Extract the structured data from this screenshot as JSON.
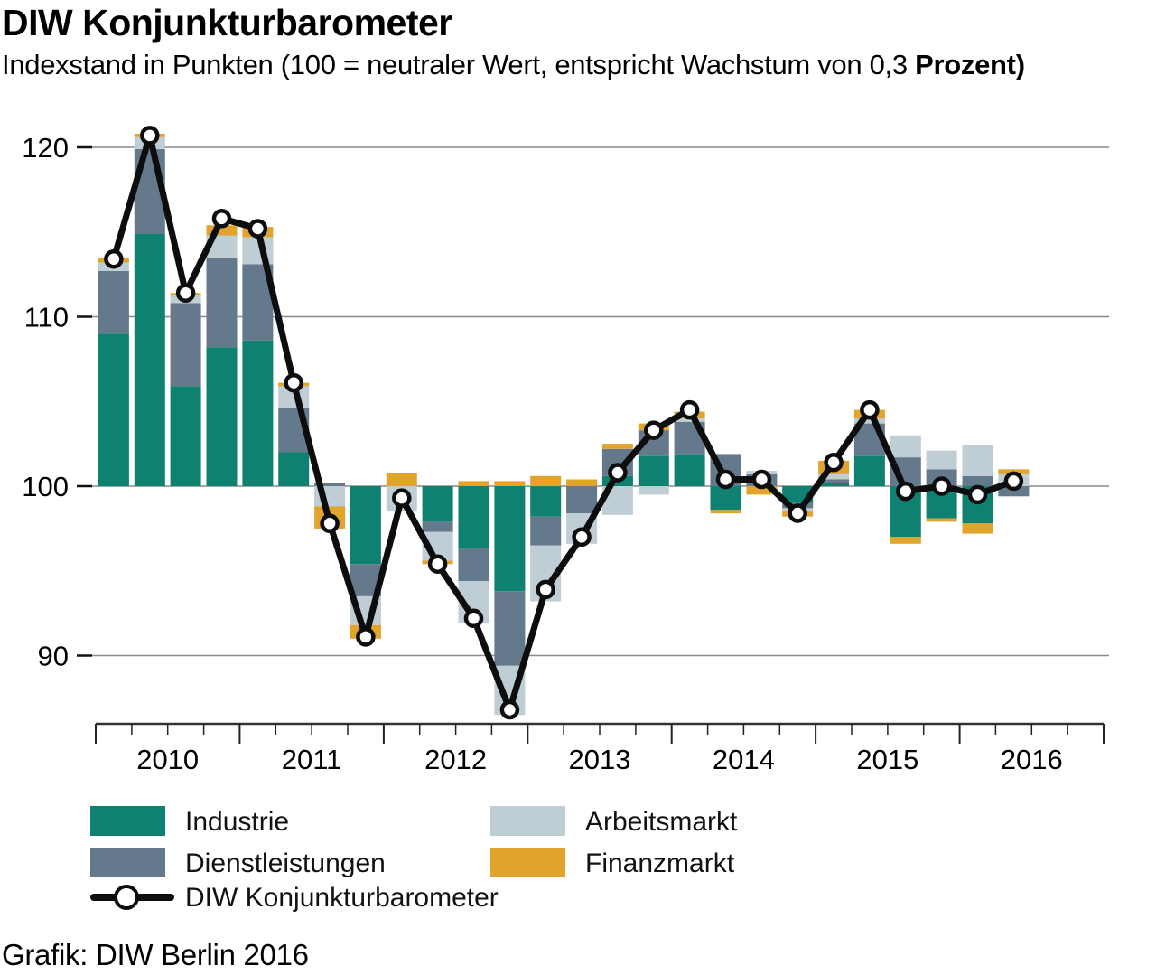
{
  "header": {
    "title": "DIW Konjunkturbarometer",
    "subtitle_regular": "Indexstand in Punkten (100 = neutraler Wert, entspricht Wachstum von 0,3 ",
    "subtitle_bold": "Prozent)"
  },
  "footer": {
    "source": "Grafik: DIW Berlin 2016"
  },
  "legend": {
    "items": [
      {
        "label": "Industrie",
        "color": "#0E8170",
        "type": "swatch"
      },
      {
        "label": "Dienstleistungen",
        "color": "#64798C",
        "type": "swatch"
      },
      {
        "label": "Arbeitsmarkt",
        "color": "#BFCDD5",
        "type": "swatch"
      },
      {
        "label": "Finanzmarkt",
        "color": "#E1A42D",
        "type": "swatch"
      },
      {
        "label": "DIW Konjunkturbarometer",
        "color": "#0D0D0D",
        "type": "line-marker"
      }
    ]
  },
  "chart_data": {
    "type": "bar",
    "subtype": "stacked-bars-with-line",
    "title": "DIW Konjunkturbarometer",
    "xlabel": "",
    "ylabel": "Indexstand in Punkten",
    "baseline": 100,
    "yticks": [
      120,
      110,
      100,
      90
    ],
    "ylim": [
      86,
      124
    ],
    "grid": "horizontal",
    "legend_position": "bottom-left",
    "x_years": [
      "2010",
      "2011",
      "2012",
      "2013",
      "2014",
      "2015",
      "2016"
    ],
    "categories": [
      "2010 Q1",
      "2010 Q2",
      "2010 Q3",
      "2010 Q4",
      "2011 Q1",
      "2011 Q2",
      "2011 Q3",
      "2011 Q4",
      "2012 Q1",
      "2012 Q2",
      "2012 Q3",
      "2012 Q4",
      "2013 Q1",
      "2013 Q2",
      "2013 Q3",
      "2013 Q4",
      "2014 Q1",
      "2014 Q2",
      "2014 Q3",
      "2014 Q4",
      "2015 Q1",
      "2015 Q2",
      "2015 Q3",
      "2015 Q4",
      "2016 Q1",
      "2016 Q2"
    ],
    "series_note": "values are contributions in index points relative to the neutral value 100; positives stack above 100, negatives below",
    "series": [
      {
        "name": "Industrie",
        "color": "#0E8170",
        "values": [
          9.0,
          14.9,
          5.9,
          8.2,
          8.6,
          2.0,
          0,
          -4.6,
          0,
          -2.1,
          -3.7,
          -6.2,
          -1.8,
          0,
          0.6,
          1.8,
          1.9,
          -1.4,
          0,
          -1.0,
          0.2,
          1.8,
          -3.0,
          -1.9,
          -2.2,
          0
        ]
      },
      {
        "name": "Dienstleistungen",
        "color": "#64798C",
        "values": [
          3.7,
          5.0,
          4.9,
          5.3,
          4.5,
          2.6,
          0.2,
          -1.9,
          0,
          -0.6,
          -1.9,
          -4.4,
          -1.7,
          -1.6,
          1.6,
          1.5,
          1.9,
          1.9,
          0.7,
          -0.3,
          0.2,
          1.9,
          1.7,
          1.0,
          0.6,
          -0.6
        ]
      },
      {
        "name": "Arbeitsmarkt",
        "color": "#BFCDD5",
        "values": [
          0.5,
          0.7,
          0.5,
          1.3,
          1.6,
          1.3,
          -1.2,
          -1.7,
          -1.5,
          -1.7,
          -2.5,
          -2.9,
          -3.3,
          -1.8,
          -1.7,
          -0.5,
          0.2,
          0,
          0.2,
          -0.2,
          0.3,
          0.3,
          1.3,
          1.1,
          1.8,
          0.7
        ]
      },
      {
        "name": "Finanzmarkt",
        "color": "#E1A42D",
        "values": [
          0.3,
          0.2,
          0.1,
          0.6,
          0.6,
          0.2,
          -1.3,
          -0.8,
          0.8,
          -0.2,
          0.3,
          0.3,
          0.6,
          0.4,
          0.3,
          0.4,
          0.4,
          -0.2,
          -0.5,
          -0.3,
          0.8,
          0.5,
          -0.4,
          -0.2,
          -0.6,
          0.3
        ]
      }
    ],
    "line": {
      "name": "DIW Konjunkturbarometer",
      "color": "#0D0D0D",
      "marker": "open-circle",
      "values": [
        113.4,
        120.7,
        111.4,
        115.8,
        115.2,
        106.1,
        97.8,
        91.1,
        99.3,
        95.4,
        92.2,
        86.8,
        93.9,
        97.0,
        100.8,
        103.3,
        104.5,
        100.4,
        100.4,
        98.4,
        101.4,
        104.5,
        99.7,
        100.0,
        99.5,
        100.3
      ]
    }
  }
}
